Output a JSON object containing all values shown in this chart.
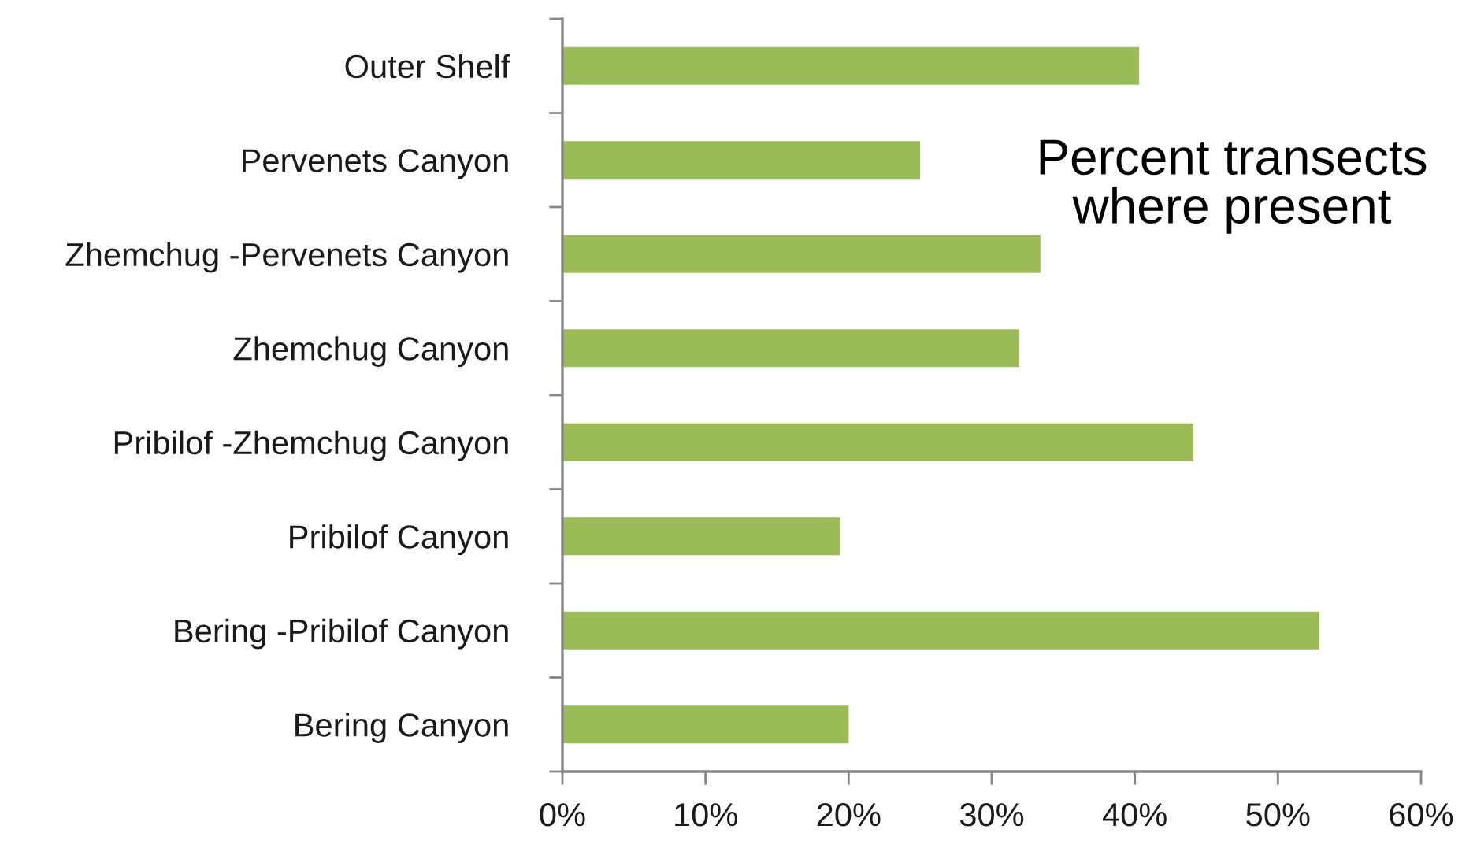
{
  "chart_data": {
    "type": "bar",
    "orientation": "horizontal",
    "categories": [
      "Outer Shelf",
      "Pervenets Canyon",
      "Zhemchug -Pervenets Canyon",
      "Zhemchug Canyon",
      "Pribilof -Zhemchug Canyon",
      "Pribilof Canyon",
      "Bering -Pribilof Canyon",
      "Bering Canyon"
    ],
    "values": [
      40.3,
      25.0,
      33.4,
      31.9,
      44.1,
      19.4,
      52.9,
      20.0
    ],
    "color": "#9bbb59",
    "xlim": [
      0,
      60
    ],
    "xticks": [
      {
        "value": 0,
        "label": "0%"
      },
      {
        "value": 10,
        "label": "10%"
      },
      {
        "value": 20,
        "label": "20%"
      },
      {
        "value": 30,
        "label": "30%"
      },
      {
        "value": 40,
        "label": "40%"
      },
      {
        "value": 50,
        "label": "50%"
      },
      {
        "value": 60,
        "label": "60%"
      }
    ],
    "annotations": [
      "Percent transects\nwhere present"
    ]
  }
}
